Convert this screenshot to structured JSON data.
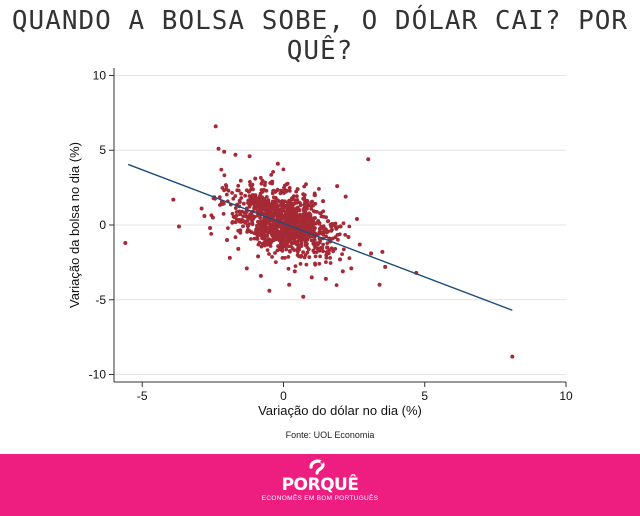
{
  "headline": "QUANDO A BOLSA SOBE, O DÓLAR CAI? POR QUÊ?",
  "source": "Fonte: UOL Economia",
  "footer": {
    "logo_text": "PORQUÊ",
    "tagline": "ECONOMÊS EM BOM PORTUGUÊS",
    "background_color": "#ee1e80"
  },
  "chart_data": {
    "type": "scatter",
    "xlabel": "Variação do dólar no dia (%)",
    "ylabel": "Variação da bolsa no dia (%)",
    "xlim": [
      -6,
      10
    ],
    "ylim": [
      -10.5,
      10.5
    ],
    "xticks": [
      -5,
      0,
      5,
      10
    ],
    "yticks": [
      10,
      5,
      0,
      -5,
      -10
    ],
    "point_color": "#a52a35",
    "line_color": "#1f4e79",
    "grid": true,
    "trend_line": {
      "x": [
        -5.5,
        8.1
      ],
      "y": [
        4.05,
        -5.7
      ]
    },
    "series": [
      {
        "points": [
          [
            -5.6,
            -1.2
          ],
          [
            -3.9,
            1.7
          ],
          [
            -3.7,
            -0.1
          ],
          [
            8.1,
            -8.8
          ],
          [
            4.7,
            -3.2
          ],
          [
            3.0,
            4.4
          ],
          [
            -2.4,
            6.6
          ],
          [
            -2.3,
            5.1
          ],
          [
            -2.1,
            4.9
          ],
          [
            -1.7,
            4.7
          ],
          [
            -1.2,
            4.6
          ],
          [
            -0.2,
            4.1
          ],
          [
            -2.6,
            -0.2
          ],
          [
            -2.8,
            0.6
          ],
          [
            -2.5,
            0.5
          ],
          [
            -2.2,
            1.4
          ],
          [
            -2.0,
            -1.0
          ],
          [
            -1.9,
            -2.2
          ],
          [
            -1.6,
            -1.6
          ],
          [
            -1.3,
            -2.9
          ],
          [
            -0.8,
            -3.4
          ],
          [
            -0.5,
            -4.4
          ],
          [
            0.2,
            -4.0
          ],
          [
            0.7,
            -4.8
          ],
          [
            1.0,
            -3.5
          ],
          [
            1.5,
            -3.6
          ],
          [
            2.1,
            -3.1
          ],
          [
            2.4,
            -2.9
          ],
          [
            2.7,
            -1.3
          ],
          [
            3.1,
            -1.9
          ],
          [
            3.5,
            -1.8
          ],
          [
            3.6,
            -2.8
          ],
          [
            3.4,
            -4.0
          ],
          [
            2.2,
            1.9
          ],
          [
            1.9,
            2.6
          ],
          [
            1.4,
            1.6
          ],
          [
            -1.5,
            2.1
          ],
          [
            -1.0,
            3.1
          ],
          [
            -0.4,
            2.9
          ],
          [
            0.5,
            2.4
          ],
          [
            1.1,
            2.0
          ],
          [
            2.6,
            0.4
          ],
          [
            2.3,
            -0.8
          ],
          [
            1.6,
            -1.9
          ],
          [
            -1.8,
            0.2
          ],
          [
            -2.9,
            1.1
          ],
          [
            -0.9,
            -2.1
          ],
          [
            0.4,
            -3.1
          ],
          [
            2.0,
            -2.3
          ],
          [
            -1.1,
            2.4
          ]
        ]
      }
    ]
  }
}
